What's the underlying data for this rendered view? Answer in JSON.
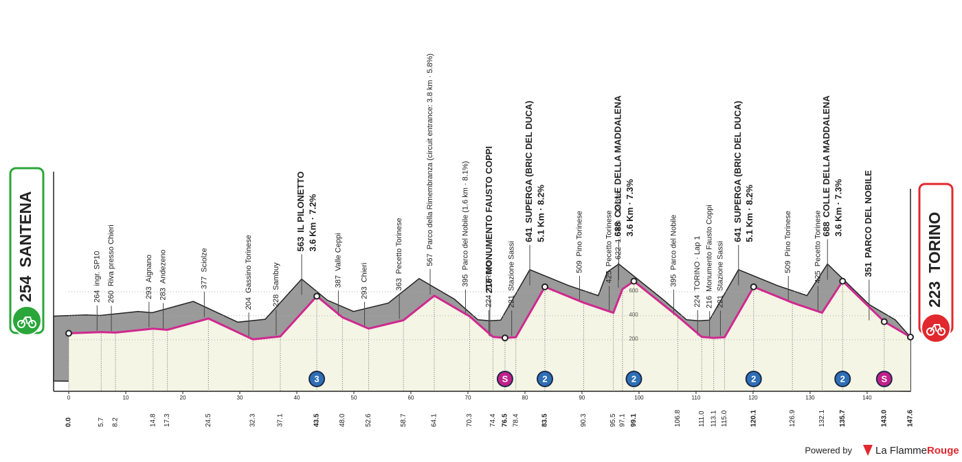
{
  "chart_data": {
    "type": "profile",
    "start_name": "SANTENA",
    "finish_name": "TORINO",
    "xlim": [
      0,
      147.6
    ],
    "xticks": [
      0,
      10,
      20,
      30,
      40,
      50,
      60,
      70,
      80,
      90,
      100,
      110,
      120,
      130,
      140
    ],
    "ylim": [
      -200,
      800
    ],
    "yticks": [
      200,
      400,
      600
    ],
    "line_color": "#d0288f",
    "waypoints": [
      {
        "km": {
          "value": 0,
          "label": "0.0"
        },
        "elevation": 254,
        "bold": true
      },
      {
        "km": 5.7,
        "elevation": 264,
        "name": "ingr. SP10"
      },
      {
        "km": 8.2,
        "elevation": 260,
        "name": "Riva presso Chieri"
      },
      {
        "km": 14.8,
        "elevation": 293,
        "name": "Aignano"
      },
      {
        "km": 17.3,
        "elevation": 283,
        "name": "Andezeno"
      },
      {
        "km": 24.5,
        "elevation": 377,
        "name": "Sciolze"
      },
      {
        "km": 32.3,
        "elevation": 204,
        "name": "Gassino Torinese"
      },
      {
        "km": 37.1,
        "elevation": 228,
        "name": "Sambuy"
      },
      {
        "km": 43.5,
        "elevation": 563,
        "name": "IL PILONETTO",
        "detail": "3.6 Km · 7.2%",
        "bold": true,
        "badge": 3
      },
      {
        "km": {
          "value": 48,
          "label": "48.0"
        },
        "elevation": 387,
        "name": "Valle Ceppi"
      },
      {
        "km": 52.6,
        "elevation": 293,
        "name": "Chieri"
      },
      {
        "km": 58.7,
        "elevation": 363,
        "name": "Pecetto Torinese"
      },
      {
        "km": 64.1,
        "elevation": 567,
        "name": "Parco della Rimembranza (circuit entrance: 3.8 km · 5.8%)"
      },
      {
        "km": 70.3,
        "elevation": 395,
        "name": "Parco del Nobile (1.6 km · 8.1%)"
      },
      {
        "km": 74.4,
        "elevation": 224,
        "name": "TORINO"
      },
      {
        "km": 76.5,
        "elevation": 216,
        "name": "MONUMENTO FAUSTO COPPI",
        "bold": true,
        "badge": "S"
      },
      {
        "km": 78.4,
        "elevation": 221,
        "name": "Stazione Sassi"
      },
      {
        "km": 83.5,
        "elevation": 641,
        "name": "SUPERGA (BRIC DEL DUCA)",
        "detail": "5.1 Km · 8.2%",
        "bold": true,
        "badge": 2
      },
      {
        "km": 90.3,
        "elevation": 509,
        "name": "Pino Torinese"
      },
      {
        "km": 95.5,
        "elevation": 425,
        "name": "Pecetto Torinese"
      },
      {
        "km": 97.1,
        "elevation": 622,
        "name": "1.6 km · 12.3%"
      },
      {
        "km": 99.1,
        "elevation": 688,
        "name": "COLLE DELLA MADDALENA",
        "detail": "3.6 Km · 7.3%",
        "bold": true,
        "badge": 2
      },
      {
        "km": 106.8,
        "elevation": 395,
        "name": "Parco del Nobile"
      },
      {
        "km": {
          "value": 111,
          "label": "111.0"
        },
        "elevation": 224,
        "name": "TORINO · Lap 1"
      },
      {
        "km": 113.1,
        "elevation": 216,
        "name": "Monumento Fausto Coppi"
      },
      {
        "km": {
          "value": 115,
          "label": "115.0"
        },
        "elevation": 221,
        "name": "Stazione Sassi"
      },
      {
        "km": 120.1,
        "elevation": 641,
        "name": "SUPERGA (BRIC DEL DUCA)",
        "detail": "5.1 Km · 8.2%",
        "bold": true,
        "badge": 2
      },
      {
        "km": 126.9,
        "elevation": 509,
        "name": "Pino Torinese"
      },
      {
        "km": 132.1,
        "elevation": 425,
        "name": "Pecetto Torinese"
      },
      {
        "km": 135.7,
        "elevation": 688,
        "name": "COLLE DELLA MADDALENA",
        "detail": "3.6 Km · 7.3%",
        "bold": true,
        "badge": 2
      },
      {
        "km": {
          "value": 143,
          "label": "143.0"
        },
        "elevation": 351,
        "name": "PARCO DEL NOBILE",
        "bold": true,
        "badge": "S"
      },
      {
        "km": 147.6,
        "elevation": 223,
        "bold": true
      }
    ],
    "footer": {
      "powered_by": "Powered by",
      "brand_1": "La Flamme",
      "brand_2": "Rouge"
    }
  }
}
